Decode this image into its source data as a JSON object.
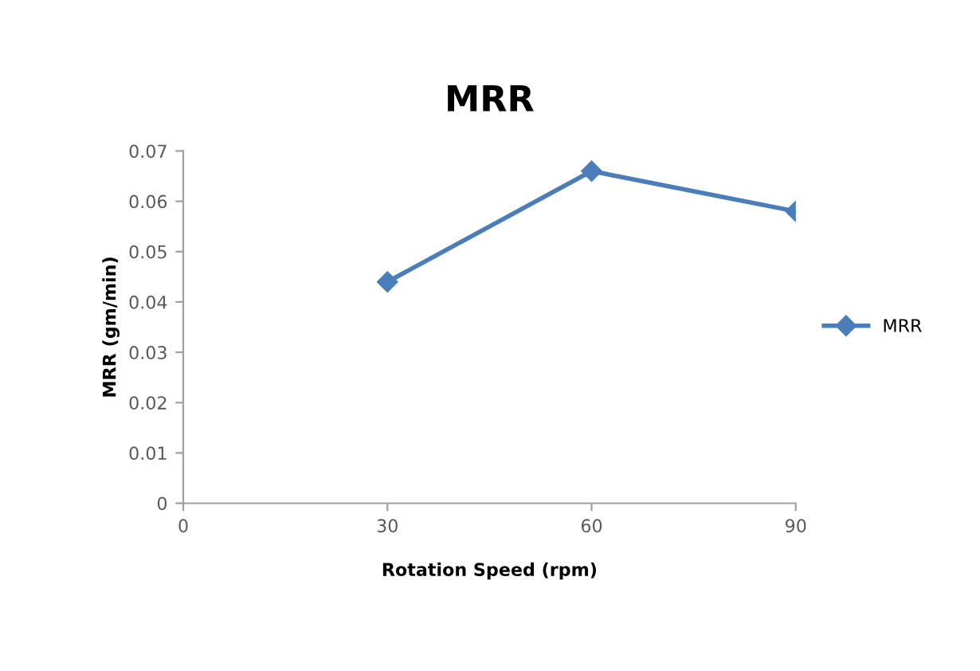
{
  "chart_data": {
    "type": "line",
    "title": "MRR",
    "xlabel": "Rotation Speed (rpm)",
    "ylabel": "MRR (gm/min)",
    "x": [
      30,
      60,
      90
    ],
    "series": [
      {
        "name": "MRR",
        "color": "#4a7ebb",
        "values": [
          0.044,
          0.066,
          0.058
        ]
      }
    ],
    "xlim": [
      0,
      90
    ],
    "xticks": [
      0,
      30,
      60,
      90
    ],
    "ylim": [
      0,
      0.07
    ],
    "yticks": [
      0,
      0.01,
      0.02,
      0.03,
      0.04,
      0.05,
      0.06,
      0.07
    ],
    "grid": false,
    "legend": "right",
    "marker": "diamond",
    "line_style": "solid"
  }
}
